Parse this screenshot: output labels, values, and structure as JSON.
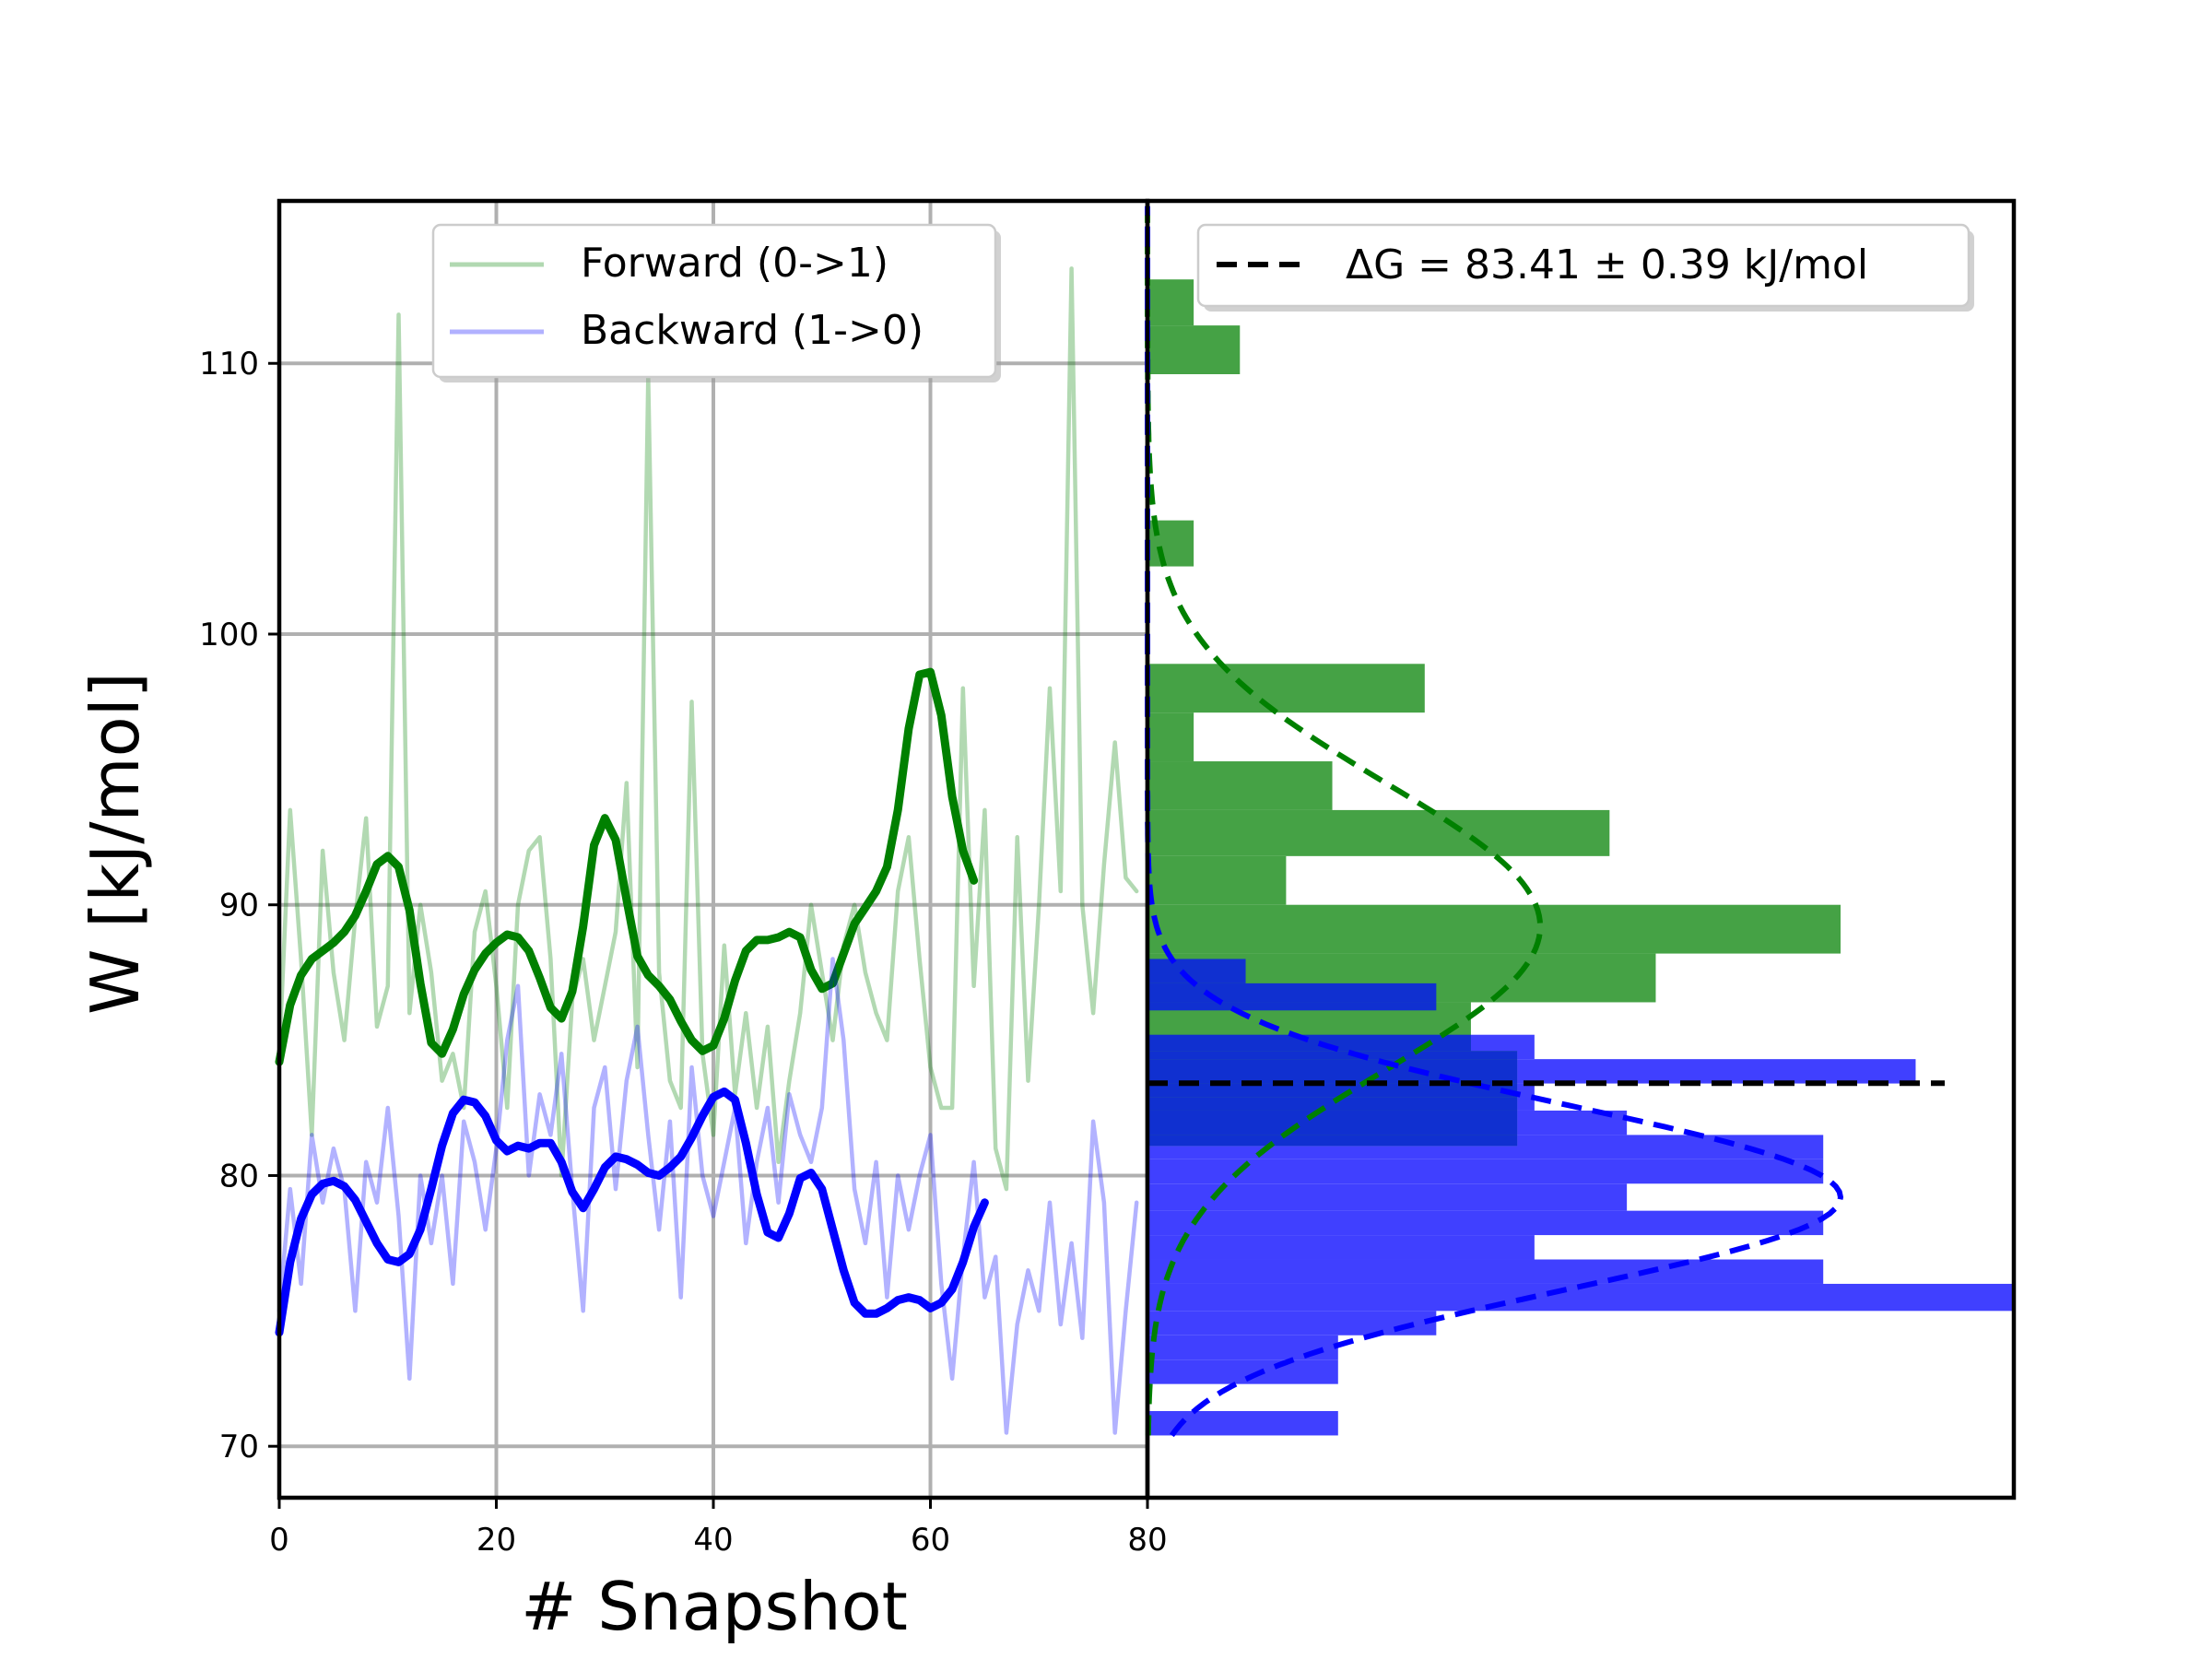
{
  "colors": {
    "forward": "#008000",
    "backward": "#0000ff",
    "forward_hist": "#3f9f3f",
    "backward_hist": "#4040ff",
    "overlap_hist": "#1030d0",
    "grid": "#b0b0b0",
    "dg_line": "#000000"
  },
  "chart_data": [
    {
      "type": "line",
      "xlabel": "# Snapshot",
      "ylabel": "W [kJ/mol]",
      "xlim": [
        0,
        80
      ],
      "ylim": [
        68.1,
        116.0
      ],
      "xticks": [
        0,
        20,
        40,
        60,
        80
      ],
      "yticks": [
        70,
        80,
        90,
        100,
        110
      ],
      "grid": true,
      "legend_position": "top-center",
      "legend": [
        "Forward (0->1)",
        "Backward (1->0)"
      ],
      "series": [
        {
          "name": "Forward (0->1)",
          "role": "raw",
          "values": [
            84.5,
            93.5,
            88.0,
            81.5,
            92.0,
            87.5,
            85.0,
            89.5,
            93.2,
            85.5,
            87.0,
            111.8,
            86.0,
            90.0,
            87.5,
            83.5,
            84.5,
            82.5,
            89.0,
            90.5,
            87.0,
            82.5,
            90.0,
            92.0,
            92.5,
            88.0,
            80.0,
            86.5,
            88.0,
            85.0,
            87.0,
            89.0,
            94.5,
            84.0,
            109.5,
            87.5,
            83.5,
            82.5,
            97.5,
            84.5,
            81.5,
            88.5,
            83.0,
            86.0,
            82.5,
            85.5,
            80.5,
            83.5,
            86.0,
            90.0,
            87.5,
            85.0,
            88.5,
            90.0,
            87.5,
            86.0,
            85.0,
            90.5,
            92.5,
            88.0,
            84.0,
            82.5,
            82.5,
            98.0,
            87.0,
            93.5,
            81.0,
            79.5,
            92.5,
            83.5,
            90.0,
            98.0,
            90.5,
            113.5,
            90.0,
            86.0,
            91.5,
            96.0,
            91.0,
            90.5
          ]
        },
        {
          "name": "Forward (0->1)",
          "role": "smoothed",
          "values": [
            84.2,
            86.3,
            87.4,
            88.0,
            88.3,
            88.6,
            89.0,
            89.6,
            90.5,
            91.5,
            91.8,
            91.4,
            89.8,
            87.1,
            84.9,
            84.5,
            85.4,
            86.7,
            87.6,
            88.2,
            88.6,
            88.9,
            88.8,
            88.3,
            87.3,
            86.2,
            85.8,
            86.8,
            89.2,
            92.2,
            93.2,
            92.4,
            90.2,
            88.1,
            87.4,
            87.0,
            86.5,
            85.7,
            85.0,
            84.6,
            84.8,
            85.8,
            87.2,
            88.3,
            88.7,
            88.7,
            88.8,
            89.0,
            88.8,
            87.6,
            86.9,
            87.1,
            88.2,
            89.3,
            89.9,
            90.5,
            91.4,
            93.5,
            96.5,
            98.5,
            98.6,
            97.0,
            94.0,
            92.0,
            90.9
          ],
          "x": [
            0,
            1,
            2,
            3,
            4,
            5,
            6,
            7,
            8,
            9,
            10,
            11,
            12,
            13,
            14,
            15,
            16,
            17,
            18,
            19,
            20,
            21,
            22,
            23,
            24,
            25,
            26,
            27,
            28,
            29,
            30,
            31,
            32,
            33,
            34,
            35,
            36,
            37,
            38,
            39,
            40,
            41,
            42,
            43,
            44,
            45,
            46,
            47,
            48,
            49,
            50,
            51,
            52,
            53,
            54,
            55,
            56,
            57,
            58,
            59,
            60,
            61,
            62,
            63,
            64
          ]
        },
        {
          "name": "Backward (1->0)",
          "role": "raw",
          "values": [
            75.0,
            79.5,
            76.0,
            81.5,
            79.0,
            81.0,
            79.5,
            75.0,
            80.5,
            79.0,
            82.5,
            78.5,
            72.5,
            80.0,
            77.5,
            80.0,
            76.0,
            82.0,
            80.5,
            78.0,
            81.0,
            85.0,
            87.0,
            80.0,
            83.0,
            81.5,
            84.5,
            79.5,
            75.0,
            82.5,
            84.0,
            79.5,
            83.5,
            85.5,
            81.5,
            78.0,
            82.0,
            75.5,
            84.0,
            80.0,
            78.5,
            80.5,
            82.5,
            77.5,
            80.5,
            82.5,
            79.0,
            83.0,
            81.5,
            80.5,
            82.5,
            88.0,
            85.0,
            79.5,
            77.5,
            80.5,
            75.5,
            80.0,
            78.0,
            80.0,
            81.5,
            76.0,
            72.5,
            77.0,
            80.5,
            75.5,
            77.0,
            70.5,
            74.5,
            76.5,
            75.0,
            79.0,
            74.5,
            77.5,
            74.0,
            82.0,
            79.0,
            70.5,
            75.0,
            79.0
          ]
        },
        {
          "name": "Backward (1->0)",
          "role": "smoothed",
          "values": [
            74.2,
            76.8,
            78.4,
            79.3,
            79.7,
            79.8,
            79.6,
            79.1,
            78.3,
            77.5,
            76.9,
            76.8,
            77.1,
            78.0,
            79.5,
            81.1,
            82.3,
            82.8,
            82.7,
            82.2,
            81.3,
            80.9,
            81.1,
            81.0,
            81.2,
            81.2,
            80.5,
            79.4,
            78.8,
            79.5,
            80.3,
            80.7,
            80.6,
            80.4,
            80.1,
            80.0,
            80.3,
            80.7,
            81.4,
            82.2,
            82.9,
            83.1,
            82.8,
            81.2,
            79.3,
            77.9,
            77.7,
            78.6,
            79.9,
            80.1,
            79.5,
            78.0,
            76.5,
            75.3,
            74.9,
            74.9,
            75.1,
            75.4,
            75.5,
            75.4,
            75.1,
            75.3,
            75.8,
            76.8,
            78.1,
            79.0
          ],
          "x": [
            0,
            1,
            2,
            3,
            4,
            5,
            6,
            7,
            8,
            9,
            10,
            11,
            12,
            13,
            14,
            15,
            16,
            17,
            18,
            19,
            20,
            21,
            22,
            23,
            24,
            25,
            26,
            27,
            28,
            29,
            30,
            31,
            32,
            33,
            34,
            35,
            36,
            37,
            38,
            39,
            40,
            41,
            42,
            43,
            44,
            45,
            46,
            47,
            48,
            49,
            50,
            51,
            52,
            53,
            54,
            55,
            56,
            57,
            58,
            59,
            60,
            61,
            62,
            63,
            64,
            65
          ]
        }
      ]
    },
    {
      "type": "bar",
      "orientation": "horizontal",
      "ylim": [
        68.1,
        116.0
      ],
      "xlim": [
        0,
        15
      ],
      "legend_position": "top-right",
      "legend": [
        "ΔG = 83.41 ± 0.39 kJ/mol"
      ],
      "dG": 83.41,
      "dG_err": 0.39,
      "forward_hist": {
        "name": "Forward (0->1)",
        "bins": [
          [
            70.4,
            72.2,
            0
          ],
          [
            72.2,
            73.9,
            0
          ],
          [
            73.9,
            75.7,
            0
          ],
          [
            75.7,
            77.5,
            0
          ],
          [
            77.5,
            79.3,
            0
          ],
          [
            79.3,
            81.1,
            0
          ],
          [
            81.1,
            82.9,
            6.4
          ],
          [
            82.9,
            84.6,
            6.4
          ],
          [
            84.6,
            86.4,
            5.6
          ],
          [
            86.4,
            88.2,
            8.8
          ],
          [
            88.2,
            90.0,
            12.0
          ],
          [
            90.0,
            91.8,
            2.4
          ],
          [
            91.8,
            93.5,
            8.0
          ],
          [
            93.5,
            95.3,
            3.2
          ],
          [
            95.3,
            97.1,
            0.8
          ],
          [
            97.1,
            98.9,
            4.8
          ],
          [
            98.9,
            100.7,
            0
          ],
          [
            100.7,
            102.5,
            0
          ],
          [
            102.5,
            104.2,
            0.8
          ],
          [
            104.2,
            106.0,
            0
          ],
          [
            106.0,
            107.8,
            0
          ],
          [
            107.8,
            109.6,
            0
          ],
          [
            109.6,
            111.4,
            1.6
          ],
          [
            111.4,
            113.1,
            0.8
          ]
        ]
      },
      "backward_hist": {
        "name": "Backward (1->0)",
        "bins": [
          [
            70.4,
            71.3,
            3.3
          ],
          [
            71.3,
            72.3,
            0
          ],
          [
            72.3,
            73.2,
            3.3
          ],
          [
            73.2,
            74.1,
            3.3
          ],
          [
            74.1,
            75.0,
            5.0
          ],
          [
            75.0,
            76.0,
            15.0
          ],
          [
            76.0,
            76.9,
            11.7
          ],
          [
            76.9,
            77.8,
            6.7
          ],
          [
            77.8,
            78.7,
            11.7
          ],
          [
            78.7,
            79.7,
            8.3
          ],
          [
            79.7,
            80.6,
            11.7
          ],
          [
            80.6,
            81.5,
            11.7
          ],
          [
            81.5,
            82.4,
            8.3
          ],
          [
            82.4,
            83.4,
            6.7
          ],
          [
            83.4,
            84.3,
            13.3
          ],
          [
            84.3,
            85.2,
            6.7
          ],
          [
            85.2,
            86.1,
            0
          ],
          [
            86.1,
            87.1,
            5.0
          ],
          [
            87.1,
            88.0,
            1.7
          ]
        ]
      },
      "forward_gaussian": {
        "mean": 89.2,
        "sd": 5.3,
        "peak": 6.8
      },
      "backward_gaussian": {
        "mean": 79.2,
        "sd": 3.4,
        "peak": 12.0
      }
    }
  ]
}
